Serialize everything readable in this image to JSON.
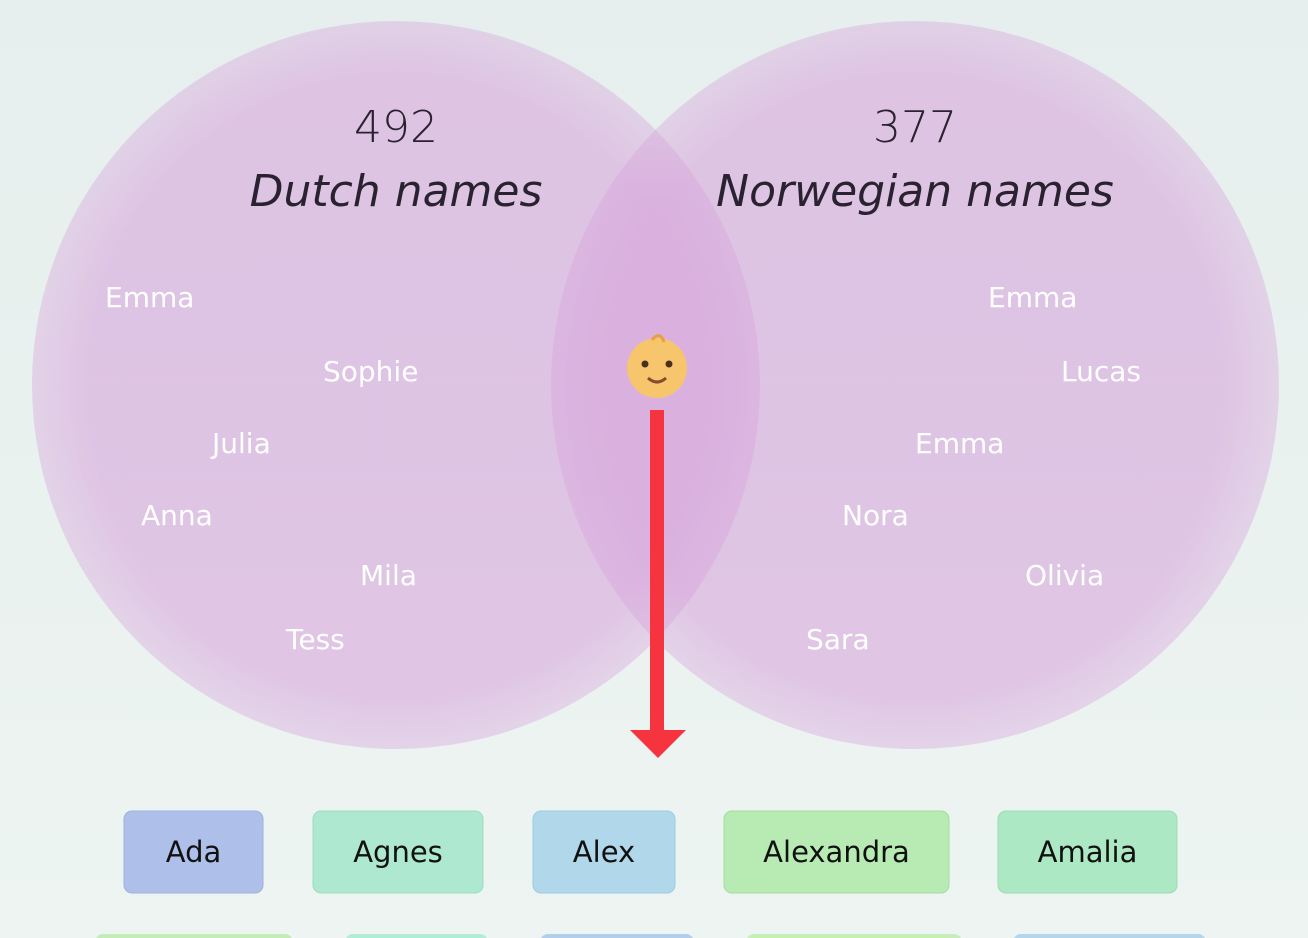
{
  "venn": {
    "left": {
      "count": 492,
      "label": "Dutch names",
      "names": [
        "Emma",
        "Sophie",
        "Julia",
        "Anna",
        "Mila",
        "Tess"
      ]
    },
    "right": {
      "count": 377,
      "label": "Norwegian names",
      "names": [
        "Emma",
        "Lucas",
        "Emma",
        "Nora",
        "Olivia",
        "Sara"
      ]
    }
  },
  "tags": [
    "Ada",
    "Agnes",
    "Alex",
    "Alexandra",
    "Amalia"
  ]
}
